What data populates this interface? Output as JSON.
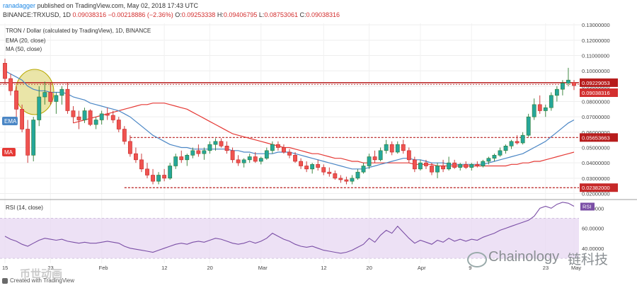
{
  "header": {
    "user": "ranadagger",
    "published": "published on TradingView.com, May 02, 2018 17:43 UTC",
    "symbol": "BINANCE:TRXUSD, 1D",
    "last": "0.09038316",
    "change": "−0.00218886 (−2.36%)",
    "o_label": "O:",
    "o": "0.09253338",
    "h_label": "H:",
    "h": "0.09406795",
    "l_label": "L:",
    "l": "0.08753061",
    "c_label": "C:",
    "c": "0.09038316"
  },
  "legend": {
    "title": "TRON / Dollar (calculated by TradingView), 1D, BINANCE",
    "ema": "EMA (20, close)",
    "ma": "MA (50, close)"
  },
  "tags": {
    "ema": "EMA",
    "ma": "MA",
    "rsi": "RSI"
  },
  "rsi_title": "RSI (14, close)",
  "footer": "Created with TradingView",
  "watermark": {
    "latin": "Chainology",
    "cjk": "链科技",
    "cjk_left": "币世动画"
  },
  "colors": {
    "up": "#26a69a",
    "down": "#ef5350",
    "body_up": "#2e7d32",
    "body_down": "#c62828",
    "ema": "#4a86c5",
    "ma": "#e53935",
    "rsi": "#7b4fa6",
    "rsi_band": "#e9d9f2",
    "resistance": "#b71c1c",
    "highlight": "#c8b400"
  },
  "chart_data": [
    {
      "type": "candlestick",
      "title": "TRON / Dollar (calculated by TradingView), 1D, BINANCE",
      "x_ticks": [
        "15",
        "23",
        "Feb",
        "12",
        "20",
        "Mar",
        "12",
        "20",
        "Apr",
        "9",
        "23",
        "May"
      ],
      "y_ticks": [
        "0.13000000",
        "0.12000000",
        "0.11000000",
        "0.10000000",
        "0.09000000",
        "0.08000000",
        "0.07000000",
        "0.06000000",
        "0.05000000",
        "0.04000000",
        "0.03000000",
        "0.02000000"
      ],
      "ylim": [
        0.017,
        0.131
      ],
      "price_labels": [
        {
          "value": 0.09229053,
          "text": "0.09229053"
        },
        {
          "value": 0.09038316,
          "text": "0.09038316"
        },
        {
          "value": 0.05653663,
          "text": "0.05653663"
        },
        {
          "value": 0.02382,
          "text": "0.02382000"
        }
      ],
      "horizontal_levels": [
        0.09229053,
        0.05653663,
        0.02382
      ],
      "candles": [
        [
          0.105,
          0.108,
          0.091,
          0.095
        ],
        [
          0.095,
          0.098,
          0.084,
          0.087
        ],
        [
          0.087,
          0.09,
          0.07,
          0.075
        ],
        [
          0.075,
          0.078,
          0.06,
          0.062
        ],
        [
          0.062,
          0.068,
          0.04,
          0.045
        ],
        [
          0.045,
          0.07,
          0.041,
          0.068
        ],
        [
          0.068,
          0.09,
          0.064,
          0.083
        ],
        [
          0.083,
          0.093,
          0.078,
          0.086
        ],
        [
          0.086,
          0.092,
          0.078,
          0.08
        ],
        [
          0.08,
          0.086,
          0.072,
          0.084
        ],
        [
          0.084,
          0.09,
          0.078,
          0.088
        ],
        [
          0.088,
          0.092,
          0.072,
          0.074
        ],
        [
          0.074,
          0.077,
          0.066,
          0.07
        ],
        [
          0.07,
          0.074,
          0.062,
          0.068
        ],
        [
          0.068,
          0.076,
          0.066,
          0.074
        ],
        [
          0.074,
          0.075,
          0.064,
          0.065
        ],
        [
          0.065,
          0.07,
          0.062,
          0.068
        ],
        [
          0.068,
          0.074,
          0.065,
          0.072
        ],
        [
          0.072,
          0.076,
          0.068,
          0.071
        ],
        [
          0.071,
          0.074,
          0.066,
          0.068
        ],
        [
          0.068,
          0.07,
          0.06,
          0.062
        ],
        [
          0.062,
          0.064,
          0.052,
          0.054
        ],
        [
          0.054,
          0.058,
          0.044,
          0.046
        ],
        [
          0.046,
          0.05,
          0.04,
          0.042
        ],
        [
          0.042,
          0.046,
          0.034,
          0.036
        ],
        [
          0.036,
          0.04,
          0.03,
          0.032
        ],
        [
          0.032,
          0.036,
          0.026,
          0.028
        ],
        [
          0.028,
          0.034,
          0.026,
          0.032
        ],
        [
          0.032,
          0.036,
          0.028,
          0.03
        ],
        [
          0.03,
          0.04,
          0.029,
          0.038
        ],
        [
          0.038,
          0.046,
          0.036,
          0.044
        ],
        [
          0.044,
          0.048,
          0.04,
          0.042
        ],
        [
          0.042,
          0.046,
          0.038,
          0.045
        ],
        [
          0.045,
          0.05,
          0.043,
          0.048
        ],
        [
          0.048,
          0.052,
          0.044,
          0.046
        ],
        [
          0.046,
          0.05,
          0.042,
          0.048
        ],
        [
          0.048,
          0.054,
          0.046,
          0.052
        ],
        [
          0.052,
          0.056,
          0.048,
          0.054
        ],
        [
          0.054,
          0.056,
          0.05,
          0.051
        ],
        [
          0.051,
          0.054,
          0.046,
          0.048
        ],
        [
          0.048,
          0.05,
          0.04,
          0.042
        ],
        [
          0.042,
          0.045,
          0.038,
          0.04
        ],
        [
          0.04,
          0.043,
          0.037,
          0.042
        ],
        [
          0.042,
          0.046,
          0.04,
          0.044
        ],
        [
          0.044,
          0.047,
          0.04,
          0.041
        ],
        [
          0.041,
          0.044,
          0.039,
          0.043
        ],
        [
          0.043,
          0.05,
          0.042,
          0.048
        ],
        [
          0.048,
          0.054,
          0.046,
          0.052
        ],
        [
          0.052,
          0.054,
          0.048,
          0.05
        ],
        [
          0.05,
          0.052,
          0.046,
          0.047
        ],
        [
          0.047,
          0.049,
          0.043,
          0.045
        ],
        [
          0.045,
          0.047,
          0.04,
          0.041
        ],
        [
          0.041,
          0.043,
          0.036,
          0.038
        ],
        [
          0.038,
          0.041,
          0.034,
          0.036
        ],
        [
          0.036,
          0.04,
          0.033,
          0.039
        ],
        [
          0.039,
          0.042,
          0.035,
          0.037
        ],
        [
          0.037,
          0.039,
          0.032,
          0.034
        ],
        [
          0.034,
          0.037,
          0.031,
          0.033
        ],
        [
          0.033,
          0.035,
          0.029,
          0.03
        ],
        [
          0.03,
          0.032,
          0.027,
          0.029
        ],
        [
          0.029,
          0.031,
          0.026,
          0.028
        ],
        [
          0.028,
          0.032,
          0.026,
          0.03
        ],
        [
          0.03,
          0.036,
          0.029,
          0.034
        ],
        [
          0.034,
          0.04,
          0.033,
          0.038
        ],
        [
          0.038,
          0.046,
          0.036,
          0.044
        ],
        [
          0.044,
          0.048,
          0.04,
          0.042
        ],
        [
          0.042,
          0.05,
          0.041,
          0.048
        ],
        [
          0.048,
          0.055,
          0.046,
          0.052
        ],
        [
          0.052,
          0.054,
          0.045,
          0.047
        ],
        [
          0.047,
          0.054,
          0.046,
          0.052
        ],
        [
          0.052,
          0.055,
          0.046,
          0.048
        ],
        [
          0.048,
          0.05,
          0.04,
          0.042
        ],
        [
          0.042,
          0.044,
          0.034,
          0.036
        ],
        [
          0.036,
          0.042,
          0.035,
          0.04
        ],
        [
          0.04,
          0.042,
          0.036,
          0.038
        ],
        [
          0.038,
          0.04,
          0.032,
          0.034
        ],
        [
          0.034,
          0.04,
          0.03,
          0.038
        ],
        [
          0.038,
          0.042,
          0.034,
          0.036
        ],
        [
          0.036,
          0.044,
          0.035,
          0.04
        ],
        [
          0.04,
          0.042,
          0.036,
          0.037
        ],
        [
          0.037,
          0.04,
          0.035,
          0.039
        ],
        [
          0.039,
          0.041,
          0.036,
          0.037
        ],
        [
          0.037,
          0.04,
          0.035,
          0.039
        ],
        [
          0.039,
          0.041,
          0.037,
          0.038
        ],
        [
          0.038,
          0.042,
          0.037,
          0.041
        ],
        [
          0.041,
          0.044,
          0.039,
          0.043
        ],
        [
          0.043,
          0.046,
          0.041,
          0.045
        ],
        [
          0.045,
          0.05,
          0.044,
          0.048
        ],
        [
          0.048,
          0.052,
          0.046,
          0.051
        ],
        [
          0.051,
          0.055,
          0.049,
          0.054
        ],
        [
          0.054,
          0.058,
          0.052,
          0.053
        ],
        [
          0.053,
          0.06,
          0.052,
          0.058
        ],
        [
          0.058,
          0.072,
          0.057,
          0.07
        ],
        [
          0.07,
          0.082,
          0.068,
          0.078
        ],
        [
          0.078,
          0.084,
          0.072,
          0.074
        ],
        [
          0.074,
          0.078,
          0.07,
          0.076
        ],
        [
          0.076,
          0.086,
          0.074,
          0.084
        ],
        [
          0.084,
          0.09,
          0.08,
          0.088
        ],
        [
          0.088,
          0.094,
          0.084,
          0.092
        ],
        [
          0.092,
          0.102,
          0.09,
          0.094
        ],
        [
          0.0925,
          0.0941,
          0.0875,
          0.0904
        ]
      ],
      "ema": [
        0.1,
        0.098,
        0.096,
        0.094,
        0.09,
        0.088,
        0.087,
        0.087,
        0.086,
        0.086,
        0.086,
        0.085,
        0.083,
        0.082,
        0.081,
        0.079,
        0.078,
        0.077,
        0.076,
        0.075,
        0.074,
        0.072,
        0.07,
        0.067,
        0.064,
        0.061,
        0.058,
        0.056,
        0.054,
        0.052,
        0.051,
        0.05,
        0.05,
        0.049,
        0.049,
        0.049,
        0.049,
        0.049,
        0.049,
        0.049,
        0.048,
        0.048,
        0.047,
        0.047,
        0.046,
        0.046,
        0.046,
        0.046,
        0.047,
        0.047,
        0.047,
        0.046,
        0.045,
        0.044,
        0.043,
        0.042,
        0.041,
        0.04,
        0.039,
        0.038,
        0.037,
        0.036,
        0.036,
        0.036,
        0.037,
        0.038,
        0.039,
        0.04,
        0.041,
        0.042,
        0.043,
        0.043,
        0.042,
        0.042,
        0.041,
        0.04,
        0.04,
        0.04,
        0.039,
        0.039,
        0.039,
        0.039,
        0.039,
        0.039,
        0.039,
        0.04,
        0.041,
        0.042,
        0.043,
        0.044,
        0.045,
        0.046,
        0.048,
        0.05,
        0.052,
        0.054,
        0.057,
        0.06,
        0.063,
        0.066,
        0.068
      ],
      "ma": [
        null,
        null,
        null,
        null,
        null,
        null,
        null,
        null,
        null,
        null,
        null,
        null,
        0.066,
        0.067,
        0.068,
        0.069,
        0.07,
        0.071,
        0.072,
        0.073,
        0.074,
        0.075,
        0.076,
        0.077,
        0.078,
        0.078,
        0.079,
        0.079,
        0.079,
        0.078,
        0.077,
        0.076,
        0.075,
        0.073,
        0.071,
        0.069,
        0.067,
        0.065,
        0.063,
        0.061,
        0.059,
        0.058,
        0.057,
        0.056,
        0.055,
        0.054,
        0.053,
        0.052,
        0.051,
        0.05,
        0.05,
        0.049,
        0.048,
        0.047,
        0.046,
        0.046,
        0.045,
        0.044,
        0.043,
        0.043,
        0.042,
        0.041,
        0.041,
        0.04,
        0.04,
        0.04,
        0.04,
        0.04,
        0.04,
        0.04,
        0.04,
        0.04,
        0.039,
        0.039,
        0.039,
        0.039,
        0.038,
        0.038,
        0.038,
        0.038,
        0.038,
        0.038,
        0.038,
        0.038,
        0.038,
        0.038,
        0.038,
        0.038,
        0.038,
        0.039,
        0.039,
        0.04,
        0.04,
        0.041,
        0.041,
        0.042,
        0.043,
        0.044,
        0.045,
        0.046,
        0.047
      ]
    },
    {
      "type": "line",
      "title": "RSI (14, close)",
      "y_ticks": [
        "80.00000",
        "60.00000",
        "40.00000"
      ],
      "ylim": [
        25,
        88
      ],
      "band": [
        30,
        70
      ],
      "price_label": "RSI",
      "values": [
        52,
        49,
        47,
        44,
        42,
        45,
        48,
        50,
        49,
        48,
        49,
        47,
        46,
        45,
        46,
        45,
        45,
        46,
        47,
        46,
        45,
        42,
        40,
        39,
        38,
        37,
        36,
        38,
        40,
        42,
        44,
        45,
        44,
        46,
        47,
        46,
        48,
        50,
        49,
        47,
        45,
        44,
        45,
        47,
        45,
        47,
        50,
        55,
        52,
        49,
        47,
        44,
        42,
        41,
        42,
        40,
        38,
        37,
        36,
        35,
        36,
        38,
        41,
        44,
        50,
        46,
        53,
        58,
        55,
        62,
        56,
        50,
        45,
        48,
        46,
        44,
        48,
        46,
        50,
        47,
        49,
        47,
        49,
        48,
        51,
        53,
        55,
        58,
        60,
        62,
        64,
        66,
        68,
        72,
        80,
        82,
        80,
        84,
        86,
        85,
        82
      ]
    }
  ]
}
